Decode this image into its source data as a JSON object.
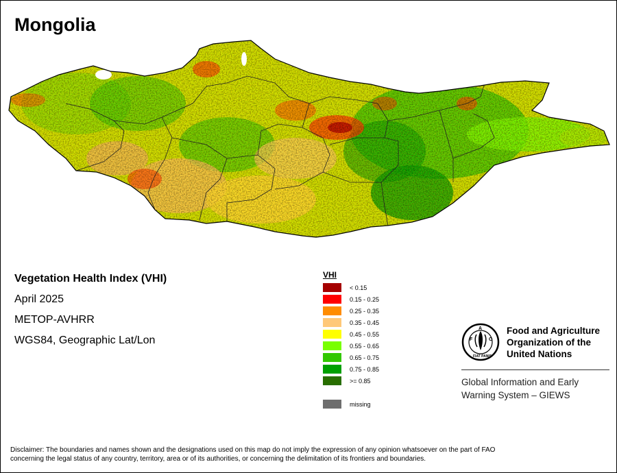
{
  "map": {
    "title": "Mongolia",
    "info": {
      "index_name": "Vegetation Health Index (VHI)",
      "period": "April 2025",
      "sensor": "METOP-AVHRR",
      "projection": "WGS84, Geographic Lat/Lon"
    },
    "legend": {
      "title": "VHI",
      "classes": [
        {
          "label": "< 0.15",
          "color": "#a50000"
        },
        {
          "label": "0.15 - 0.25",
          "color": "#ff0000"
        },
        {
          "label": "0.25 - 0.35",
          "color": "#ff8c00"
        },
        {
          "label": "0.35 - 0.45",
          "color": "#ffc878"
        },
        {
          "label": "0.45 - 0.55",
          "color": "#ffff00"
        },
        {
          "label": "0.55 - 0.65",
          "color": "#78ff00"
        },
        {
          "label": "0.65 - 0.75",
          "color": "#32c800"
        },
        {
          "label": "0.75 - 0.85",
          "color": "#00a000"
        },
        {
          "label": ">= 0.85",
          "color": "#286e00"
        }
      ],
      "missing": {
        "label": "missing",
        "color": "#6e6e6e"
      }
    }
  },
  "org": {
    "logo_text": "FAO",
    "logo_motto": "FIAT PANIS",
    "name_line1": "Food and Agriculture",
    "name_line2": "Organization of the",
    "name_line3": "United Nations",
    "system_line1": "Global Information and Early",
    "system_line2": "Warning System – GIEWS"
  },
  "disclaimer": {
    "line1": "Disclaimer: The boundaries and names shown and the designations used on this map do not imply the expression of any opinion whatsoever on the part of FAO",
    "line2": "concerning the legal status of any country, territory, area or of its authorities, or concerning the delimitation of its frontiers and boundaries."
  }
}
